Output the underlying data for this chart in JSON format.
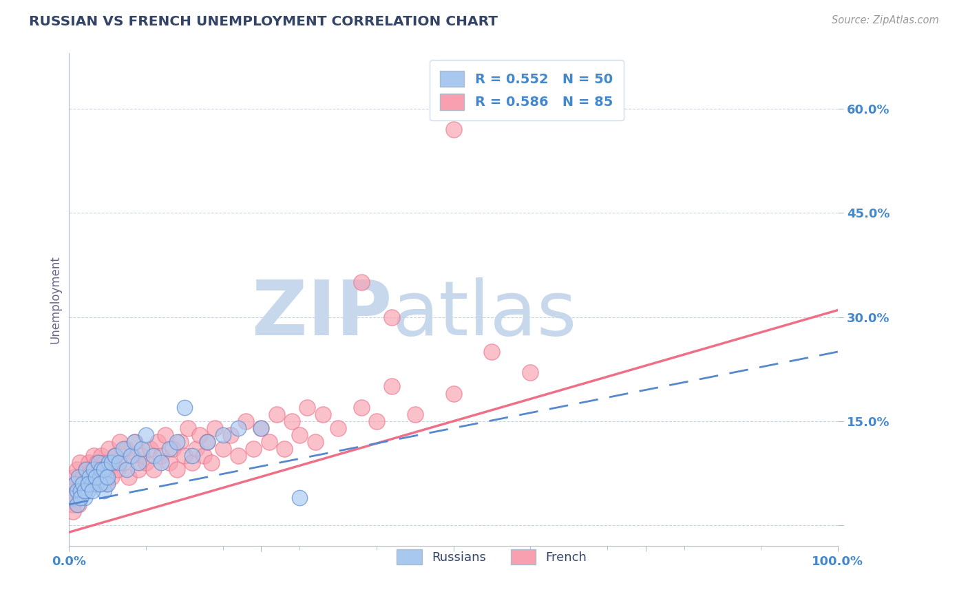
{
  "title": "RUSSIAN VS FRENCH UNEMPLOYMENT CORRELATION CHART",
  "source_text": "Source: ZipAtlas.com",
  "ylabel": "Unemployment",
  "xlim": [
    0,
    1.0
  ],
  "ylim": [
    -0.03,
    0.68
  ],
  "xticks": [
    0.0,
    0.25,
    0.5,
    0.75,
    1.0
  ],
  "xticklabels": [
    "0.0%",
    "",
    "",
    "",
    "100.0%"
  ],
  "ytick_values": [
    0.0,
    0.15,
    0.3,
    0.45,
    0.6
  ],
  "ytick_labels": [
    "",
    "15.0%",
    "30.0%",
    "45.0%",
    "60.0%"
  ],
  "legend_r_russian": "R = 0.552",
  "legend_n_russian": "N = 50",
  "legend_r_french": "R = 0.586",
  "legend_n_french": "N = 85",
  "russian_color": "#A8C8F0",
  "french_color": "#F8A0B0",
  "russian_line_color": "#5588CC",
  "french_line_color": "#EE7088",
  "watermark_zip": "ZIP",
  "watermark_atlas": "atlas",
  "watermark_color": "#C8D8EC",
  "title_color": "#334466",
  "tick_label_color": "#4488CC",
  "background_color": "#FFFFFF",
  "grid_color": "#C8D4E0",
  "russian_scatter_x": [
    0.005,
    0.008,
    0.01,
    0.012,
    0.015,
    0.018,
    0.02,
    0.022,
    0.025,
    0.027,
    0.03,
    0.032,
    0.035,
    0.038,
    0.04,
    0.042,
    0.045,
    0.048,
    0.05,
    0.052,
    0.01,
    0.015,
    0.02,
    0.025,
    0.03,
    0.035,
    0.04,
    0.045,
    0.05,
    0.055,
    0.06,
    0.065,
    0.07,
    0.075,
    0.08,
    0.085,
    0.09,
    0.095,
    0.1,
    0.11,
    0.12,
    0.13,
    0.14,
    0.15,
    0.16,
    0.18,
    0.2,
    0.22,
    0.25,
    0.3
  ],
  "russian_scatter_y": [
    0.04,
    0.06,
    0.05,
    0.07,
    0.05,
    0.06,
    0.04,
    0.08,
    0.05,
    0.07,
    0.06,
    0.08,
    0.06,
    0.09,
    0.07,
    0.08,
    0.05,
    0.07,
    0.06,
    0.09,
    0.03,
    0.04,
    0.05,
    0.06,
    0.05,
    0.07,
    0.06,
    0.08,
    0.07,
    0.09,
    0.1,
    0.09,
    0.11,
    0.08,
    0.1,
    0.12,
    0.09,
    0.11,
    0.13,
    0.1,
    0.09,
    0.11,
    0.12,
    0.17,
    0.1,
    0.12,
    0.13,
    0.14,
    0.14,
    0.04
  ],
  "french_scatter_x": [
    0.005,
    0.007,
    0.009,
    0.01,
    0.012,
    0.014,
    0.016,
    0.018,
    0.02,
    0.022,
    0.024,
    0.026,
    0.028,
    0.03,
    0.032,
    0.034,
    0.036,
    0.038,
    0.04,
    0.042,
    0.044,
    0.046,
    0.048,
    0.05,
    0.052,
    0.055,
    0.058,
    0.06,
    0.063,
    0.066,
    0.07,
    0.074,
    0.078,
    0.082,
    0.086,
    0.09,
    0.095,
    0.1,
    0.105,
    0.11,
    0.115,
    0.12,
    0.125,
    0.13,
    0.135,
    0.14,
    0.145,
    0.15,
    0.155,
    0.16,
    0.165,
    0.17,
    0.175,
    0.18,
    0.185,
    0.19,
    0.2,
    0.21,
    0.22,
    0.23,
    0.24,
    0.25,
    0.26,
    0.27,
    0.28,
    0.29,
    0.3,
    0.31,
    0.32,
    0.33,
    0.35,
    0.38,
    0.4,
    0.42,
    0.45,
    0.5,
    0.55,
    0.6,
    0.38,
    0.42,
    0.005,
    0.008,
    0.012,
    0.5,
    0.005
  ],
  "french_scatter_y": [
    0.05,
    0.07,
    0.06,
    0.08,
    0.05,
    0.09,
    0.06,
    0.07,
    0.05,
    0.08,
    0.07,
    0.09,
    0.06,
    0.08,
    0.1,
    0.07,
    0.09,
    0.06,
    0.08,
    0.1,
    0.07,
    0.09,
    0.06,
    0.08,
    0.11,
    0.07,
    0.09,
    0.1,
    0.08,
    0.12,
    0.09,
    0.11,
    0.07,
    0.1,
    0.12,
    0.08,
    0.1,
    0.09,
    0.11,
    0.08,
    0.12,
    0.1,
    0.13,
    0.09,
    0.11,
    0.08,
    0.12,
    0.1,
    0.14,
    0.09,
    0.11,
    0.13,
    0.1,
    0.12,
    0.09,
    0.14,
    0.11,
    0.13,
    0.1,
    0.15,
    0.11,
    0.14,
    0.12,
    0.16,
    0.11,
    0.15,
    0.13,
    0.17,
    0.12,
    0.16,
    0.14,
    0.17,
    0.15,
    0.2,
    0.16,
    0.19,
    0.25,
    0.22,
    0.35,
    0.3,
    0.03,
    0.04,
    0.03,
    0.57,
    0.02
  ],
  "russian_trend_x": [
    0.0,
    1.0
  ],
  "russian_trend_y": [
    0.03,
    0.25
  ],
  "french_trend_x": [
    0.0,
    1.0
  ],
  "french_trend_y": [
    -0.01,
    0.31
  ]
}
